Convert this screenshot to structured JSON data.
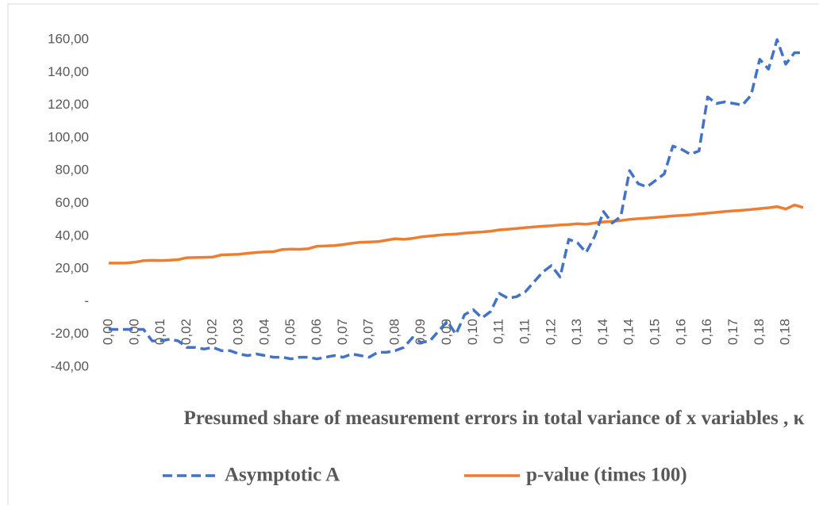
{
  "chart_data": {
    "type": "line",
    "x_label": "Presumed share of measurement errors in total variance of x variables , κ",
    "categories": [
      "0,00",
      null,
      null,
      "0,00",
      null,
      null,
      "0,01",
      null,
      null,
      "0,02",
      null,
      null,
      "0,02",
      null,
      null,
      "0,03",
      null,
      null,
      "0,04",
      null,
      null,
      "0,05",
      null,
      null,
      "0,06",
      null,
      null,
      "0,07",
      null,
      null,
      "0,07",
      null,
      null,
      "0,08",
      null,
      null,
      "0,09",
      null,
      null,
      "0,09",
      null,
      null,
      "0,10",
      null,
      null,
      "0,11",
      null,
      null,
      "0,11",
      null,
      null,
      "0,12",
      null,
      null,
      "0,13",
      null,
      null,
      "0,14",
      null,
      null,
      "0,14",
      null,
      null,
      "0,15",
      null,
      null,
      "0,16",
      null,
      null,
      "0,16",
      null,
      null,
      "0,17",
      null,
      null,
      "0,18",
      null,
      null,
      "0,18",
      null,
      null
    ],
    "series": [
      {
        "name": "p-value (times 100)",
        "color": "#ed7d31",
        "dashed": false,
        "values": [
          23.5,
          23.5,
          23.6,
          24,
          25,
          25.2,
          25.1,
          25.3,
          25.6,
          26.8,
          26.9,
          27,
          27.2,
          28.5,
          28.7,
          28.9,
          29.5,
          30,
          30.3,
          30.5,
          31.8,
          32,
          31.9,
          32.3,
          33.8,
          34,
          34.2,
          34.8,
          35.6,
          36.2,
          36.4,
          36.6,
          37.5,
          38.4,
          38,
          38.6,
          39.5,
          40,
          40.6,
          41,
          41.2,
          41.8,
          42.2,
          42.5,
          43,
          43.8,
          44.2,
          44.6,
          45.2,
          45.6,
          46,
          46.3,
          46.8,
          47,
          47.5,
          47.2,
          48,
          48.6,
          49,
          49.5,
          50.2,
          50.6,
          51,
          51.4,
          51.8,
          52.3,
          52.6,
          53,
          53.5,
          54,
          54.5,
          55,
          55.4,
          55.8,
          56.2,
          56.8,
          57.3,
          58,
          56.5,
          59,
          57.5
        ]
      },
      {
        "name": "Asymptotic A",
        "color": "#4472c4",
        "dashed": true,
        "values": [
          -17,
          -17,
          -17,
          -17,
          -17,
          -24,
          -24,
          -23,
          -24,
          -28,
          -28,
          -29,
          -28,
          -30,
          -30,
          -32,
          -33,
          -32,
          -33,
          -34,
          -34,
          -35,
          -34,
          -34,
          -35,
          -34,
          -33,
          -34,
          -32,
          -33,
          -34,
          -31,
          -31,
          -30,
          -28,
          -22,
          -25,
          -24,
          -18,
          -12,
          -20,
          -8,
          -5,
          -10,
          -6,
          5,
          2,
          3,
          6,
          12,
          18,
          22,
          15,
          38,
          36,
          30,
          40,
          55,
          48,
          52,
          80,
          72,
          70,
          74,
          78,
          95,
          93,
          90,
          92,
          125,
          121,
          122,
          121,
          120,
          126,
          148,
          142,
          160,
          145,
          152,
          152
        ]
      }
    ],
    "legend_order": [
      1,
      0
    ],
    "ylim": [
      -40,
      160
    ],
    "yticks": [
      {
        "value": -40,
        "label": "-40,00"
      },
      {
        "value": -20,
        "label": "-20,00"
      },
      {
        "value": 0,
        "label": "-"
      },
      {
        "value": 20,
        "label": "20,00"
      },
      {
        "value": 40,
        "label": "40,00"
      },
      {
        "value": 60,
        "label": "60,00"
      },
      {
        "value": 80,
        "label": "80,00"
      },
      {
        "value": 100,
        "label": "100,00"
      },
      {
        "value": 120,
        "label": "120,00"
      },
      {
        "value": 140,
        "label": "140,00"
      },
      {
        "value": 160,
        "label": "160,00"
      }
    ],
    "grid": false
  }
}
